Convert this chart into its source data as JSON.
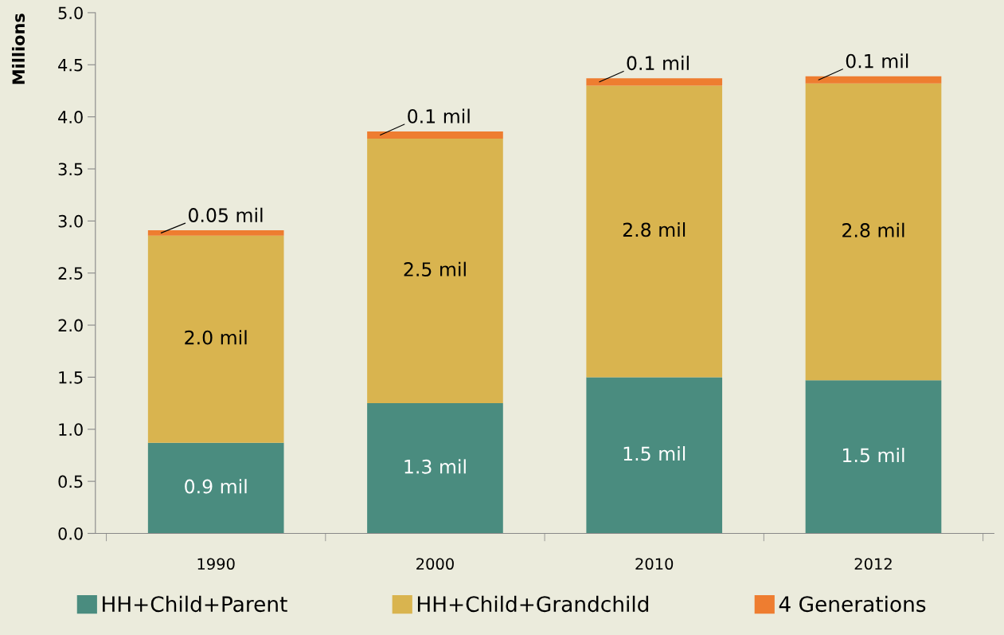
{
  "chart_data": {
    "type": "bar",
    "stacked": true,
    "ylabel": "Millions",
    "categories": [
      "1990",
      "2000",
      "2010",
      "2012"
    ],
    "series": [
      {
        "name": "HH+Child+Parent",
        "color": "#4a8c7f",
        "values": [
          0.87,
          1.25,
          1.5,
          1.47
        ],
        "value_labels": [
          "0.9 mil",
          "1.3 mil",
          "1.5 mil",
          "1.5 mil"
        ]
      },
      {
        "name": "HH+Child+Grandchild",
        "color": "#d9b44f",
        "values": [
          1.99,
          2.54,
          2.8,
          2.85
        ],
        "value_labels": [
          "2.0 mil",
          "2.5 mil",
          "2.8 mil",
          "2.8 mil"
        ]
      },
      {
        "name": "4 Generations",
        "color": "#ee7d30",
        "values": [
          0.05,
          0.07,
          0.07,
          0.07
        ],
        "value_labels": [
          "0.05 mil",
          "0.1 mil",
          "0.1 mil",
          "0.1 mil"
        ]
      }
    ],
    "ylim": [
      0,
      5.0
    ],
    "yticks": [
      "0.0",
      "0.5",
      "1.0",
      "1.5",
      "2.0",
      "2.5",
      "3.0",
      "3.5",
      "4.0",
      "4.5",
      "5.0"
    ],
    "grid": false,
    "legend": "bottom"
  }
}
